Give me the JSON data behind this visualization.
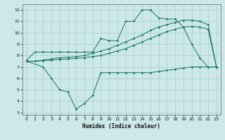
{
  "title": "",
  "xlabel": "Humidex (Indice chaleur)",
  "background_color": "#cce8e8",
  "grid_color": "#aacccc",
  "line_color": "#1a7a6e",
  "xlim": [
    -0.5,
    23.5
  ],
  "ylim": [
    2.8,
    12.5
  ],
  "xticks": [
    0,
    1,
    2,
    3,
    4,
    5,
    6,
    7,
    8,
    9,
    10,
    11,
    12,
    13,
    14,
    15,
    16,
    17,
    18,
    19,
    20,
    21,
    22,
    23
  ],
  "yticks": [
    3,
    4,
    5,
    6,
    7,
    8,
    9,
    10,
    11,
    12
  ],
  "line1_x": [
    0,
    1,
    2,
    3,
    4,
    5,
    6,
    7,
    8,
    9,
    10,
    11,
    12,
    13,
    14,
    15,
    16,
    17,
    18,
    19,
    20,
    21,
    22,
    23
  ],
  "line1_y": [
    7.6,
    8.3,
    8.3,
    8.3,
    8.3,
    8.3,
    8.3,
    8.3,
    8.3,
    9.5,
    9.3,
    9.3,
    11.0,
    11.0,
    12.0,
    12.0,
    11.3,
    11.2,
    11.2,
    10.5,
    9.0,
    7.8,
    7.0,
    7.0
  ],
  "line2_x": [
    0,
    1,
    2,
    3,
    4,
    5,
    6,
    7,
    8,
    9,
    10,
    11,
    12,
    13,
    14,
    15,
    16,
    17,
    18,
    19,
    20,
    21,
    22,
    23
  ],
  "line2_y": [
    7.5,
    7.5,
    7.55,
    7.6,
    7.65,
    7.7,
    7.75,
    7.8,
    7.9,
    8.0,
    8.2,
    8.4,
    8.6,
    8.9,
    9.2,
    9.5,
    9.8,
    10.1,
    10.3,
    10.5,
    10.55,
    10.5,
    10.3,
    7.0
  ],
  "line3_x": [
    0,
    2,
    3,
    4,
    5,
    6,
    7,
    8,
    9,
    10,
    11,
    12,
    13,
    14,
    15,
    16,
    17,
    18,
    19,
    20,
    21,
    22,
    23
  ],
  "line3_y": [
    7.5,
    7.0,
    6.0,
    5.0,
    4.8,
    3.3,
    3.8,
    4.5,
    6.5,
    6.5,
    6.5,
    6.5,
    6.5,
    6.5,
    6.5,
    6.6,
    6.7,
    6.8,
    6.9,
    7.0,
    7.0,
    7.0,
    7.0
  ],
  "line4_x": [
    0,
    1,
    2,
    3,
    4,
    5,
    6,
    7,
    8,
    9,
    10,
    11,
    12,
    13,
    14,
    15,
    16,
    17,
    18,
    19,
    20,
    21,
    22,
    23
  ],
  "line4_y": [
    7.5,
    7.5,
    7.6,
    7.7,
    7.8,
    7.85,
    7.9,
    8.0,
    8.2,
    8.4,
    8.6,
    8.9,
    9.2,
    9.5,
    9.8,
    10.2,
    10.5,
    10.7,
    10.9,
    11.1,
    11.1,
    11.0,
    10.7,
    7.0
  ]
}
